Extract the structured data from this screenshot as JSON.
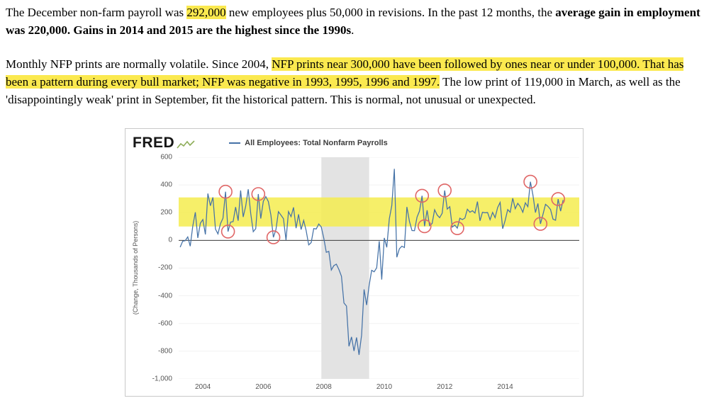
{
  "colors": {
    "text_highlight": "#fbe94f",
    "chart_line": "#4572a7",
    "chart_band": "#f5ec4f",
    "recession_band": "#e3e3e3",
    "annotation_circle": "#e06666",
    "spark_green": "#8fae5a"
  },
  "article": {
    "p1": [
      {
        "t": "The December non-farm payroll was ",
        "style": "normal"
      },
      {
        "t": "292,000",
        "style": "highlight"
      },
      {
        "t": " new employees plus 50,000 in revisions. In the past 12 months, the ",
        "style": "normal"
      },
      {
        "t": "average gain in employment was 220,000. Gains in 2014 and 2015 are the highest since the 1990s",
        "style": "bold"
      },
      {
        "t": ".",
        "style": "normal"
      }
    ],
    "p2": [
      {
        "t": "Monthly NFP prints are normally volatile. Since 2004, ",
        "style": "normal"
      },
      {
        "t": "NFP prints near 300,000 have been followed by ones near or under 100,000. That has been a pattern during every bull market; NFP was negative in 1993, 1995, 1996 and 1997.",
        "style": "highlight"
      },
      {
        "t": " The low print of 119,000 in March, as well as the 'disappointingly weak' print in September, fit the historical pattern. This is normal, not unusual or unexpected.",
        "style": "normal"
      }
    ]
  },
  "chart": {
    "brand": "FRED",
    "legend_label": "All Employees: Total Nonfarm Payrolls",
    "y_ticks": [
      {
        "v": 600,
        "label": "600"
      },
      {
        "v": 400,
        "label": "400"
      },
      {
        "v": 200,
        "label": "200"
      },
      {
        "v": 0,
        "label": "0"
      },
      {
        "v": -200,
        "label": "-200"
      },
      {
        "v": -400,
        "label": "-400"
      },
      {
        "v": -600,
        "label": "-600"
      },
      {
        "v": -800,
        "label": "-800"
      },
      {
        "v": -1000,
        "label": "-1,000"
      }
    ],
    "x_ticks": [
      {
        "v": 2004,
        "label": "2004"
      },
      {
        "v": 2006,
        "label": "2006"
      },
      {
        "v": 2008,
        "label": "2008"
      },
      {
        "v": 2010,
        "label": "2010"
      },
      {
        "v": 2012,
        "label": "2012"
      },
      {
        "v": 2014,
        "label": "2014"
      }
    ]
  },
  "chart_data": {
    "type": "line",
    "title": "All Employees: Total Nonfarm Payrolls",
    "ylabel": "(Change, Thousands of Persons)",
    "xlabel": "",
    "xlim": [
      2003.2,
      2016.45
    ],
    "ylim": [
      -1000,
      600
    ],
    "x_start": 2003.25,
    "x_interval_years": 0.0833333,
    "values": [
      -49,
      -6,
      -2,
      25,
      -42,
      103,
      203,
      18,
      124,
      150,
      43,
      338,
      250,
      310,
      81,
      47,
      121,
      160,
      351,
      64,
      132,
      136,
      240,
      142,
      360,
      169,
      246,
      369,
      195,
      63,
      84,
      334,
      158,
      282,
      316,
      280,
      182,
      22,
      78,
      207,
      182,
      157,
      2,
      208,
      171,
      238,
      88,
      188,
      78,
      144,
      71,
      -33,
      -16,
      85,
      82,
      118,
      97,
      15,
      -86,
      -80,
      -214,
      -182,
      -172,
      -210,
      -259,
      -452,
      -474,
      -765,
      -697,
      -798,
      -701,
      -826,
      -684,
      -354,
      -467,
      -327,
      -216,
      -227,
      -198,
      -6,
      -283,
      18,
      -50,
      156,
      251,
      516,
      -122,
      -61,
      -42,
      -52,
      241,
      137,
      71,
      70,
      168,
      212,
      322,
      102,
      217,
      106,
      122,
      221,
      183,
      164,
      196,
      360,
      226,
      243,
      96,
      110,
      88,
      160,
      150,
      161,
      225,
      203,
      214,
      197,
      280,
      141,
      203,
      199,
      201,
      149,
      202,
      164,
      237,
      274,
      84,
      144,
      222,
      203,
      304,
      229,
      267,
      243,
      203,
      271,
      243,
      423,
      329,
      201,
      266,
      119,
      187,
      260,
      245,
      223,
      153,
      145,
      298,
      211,
      292
    ],
    "recession_band": {
      "x_from": 2007.92,
      "x_to": 2009.5
    },
    "highlight_band": {
      "y_from": 100,
      "y_to": 310
    },
    "circle_annotations": [
      {
        "x": 2004.75,
        "y": 351
      },
      {
        "x": 2004.8333,
        "y": 64
      },
      {
        "x": 2005.8333,
        "y": 334
      },
      {
        "x": 2006.3333,
        "y": 22
      },
      {
        "x": 2011.25,
        "y": 322
      },
      {
        "x": 2011.3333,
        "y": 102
      },
      {
        "x": 2012.0,
        "y": 360
      },
      {
        "x": 2012.4167,
        "y": 88
      },
      {
        "x": 2014.8333,
        "y": 423
      },
      {
        "x": 2015.1667,
        "y": 119
      },
      {
        "x": 2015.75,
        "y": 298
      }
    ],
    "legend": [
      "All Employees: Total Nonfarm Payrolls"
    ],
    "grid": false,
    "legend_position": "top"
  }
}
